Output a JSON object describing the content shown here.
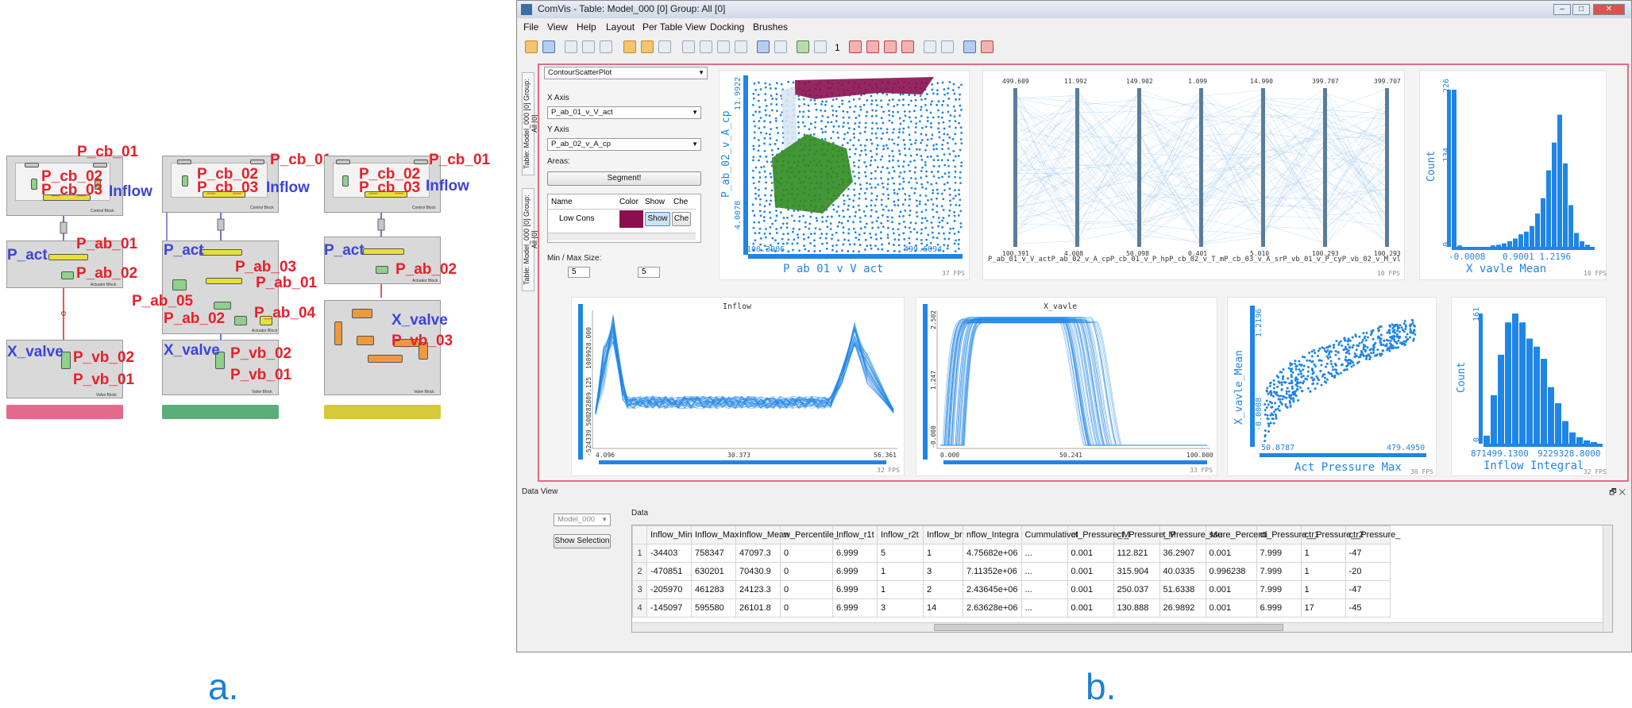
{
  "panel_a": {
    "letter": "a.",
    "column1": {
      "labels": {
        "p_cb_01": "P_cb_01",
        "p_cb_02": "P_cb_02",
        "p_cb_03": "P_cb_03",
        "inflow": "Inflow",
        "p_act": "P_act",
        "p_ab_01": "P_ab_01",
        "p_ab_02": "P_ab_02",
        "x_valve": "X_valve",
        "p_vb_02": "P_vb_02",
        "p_vb_01": "P_vb_01"
      },
      "bar_color": "#e26b8d"
    },
    "column2": {
      "labels": {
        "p_cb_01": "P_cb_01",
        "p_cb_02": "P_cb_02",
        "p_cb_03": "P_cb_03",
        "inflow": "Inflow",
        "p_act": "P_act",
        "p_ab_03": "P_ab_03",
        "p_ab_01": "P_ab_01",
        "p_ab_05": "P_ab_05",
        "p_ab_02": "P_ab_02",
        "p_ab_04": "P_ab_04",
        "x_valve": "X_valve",
        "p_vb_02": "P_vb_02",
        "p_vb_01": "P_vb_01"
      },
      "bar_color": "#5aae7a"
    },
    "column3": {
      "labels": {
        "p_cb_01": "P_cb_01",
        "p_cb_02": "P_cb_02",
        "p_cb_03": "P_cb_03",
        "inflow": "Inflow",
        "p_act": "P_act",
        "p_ab_02": "P_ab_02",
        "x_valve": "X_valve",
        "p_vb_03": "P_vb_03"
      },
      "bar_color": "#d6c93a"
    },
    "block_captions": {
      "control": "Control Block",
      "actuator": "Actuator Block",
      "valve": "Valve Block"
    }
  },
  "panel_b": {
    "letter": "b.",
    "window_title": "ComVis - Table: Model_000 [0] Group: All [0]",
    "window_buttons": [
      "–",
      "□",
      "✕"
    ],
    "menu": [
      "File",
      "View",
      "Help",
      "Layout",
      "Per Table View",
      "Docking",
      "Brushes"
    ],
    "toolbar_number": "1",
    "side_tabs": [
      "Table: Model_000 [0] Group: All [0]",
      "Table: Model_000 [0] Group: All [0]"
    ],
    "controls": {
      "plot_type": "ContourScatterPlot",
      "x_axis_label": "X Axis",
      "x_axis_value": "P_ab_01_v_V_act",
      "y_axis_label": "Y Axis",
      "y_axis_value": "P_ab_02_v_A_cp",
      "areas_label": "Areas:",
      "segment_button": "Segment!",
      "table_headers": [
        "Name",
        "Color",
        "Show",
        "Che"
      ],
      "table_row": {
        "name": "Low Cons",
        "color": "#8a0f4f",
        "show": "Show",
        "che": "Che"
      },
      "minmax_label": "Min / Max Size:",
      "min_size": "5",
      "max_size": "5"
    },
    "scatter1": {
      "ylabel": "P_ab_02_v_A_cp",
      "xlabel": "P ab 01 v V act",
      "y_max": "11.9922",
      "y_min": "4.0078",
      "x_min": "100.3906",
      "x_max": "499.6094",
      "fps": "37 FPS",
      "colors": {
        "points": "#1f85e6",
        "area1": "#8a0f4f",
        "area2": "#2f8a1f",
        "area3": "#d8e6f2"
      }
    },
    "parallel": {
      "axes": [
        {
          "top": "499.609",
          "bottom": "100.391"
        },
        {
          "top": "11.992",
          "bottom": "4.008"
        },
        {
          "top": "149.902",
          "bottom": "50.098"
        },
        {
          "top": "1.099",
          "bottom": "0.401"
        },
        {
          "top": "14.990",
          "bottom": "5.010"
        },
        {
          "top": "399.707",
          "bottom": "100.293"
        },
        {
          "top": "399.707",
          "bottom": "100.293"
        }
      ],
      "axis_names": "P_ab_01_v_V_actP_ab_02_v_A_cpP_cb_01_v_P_hpP_cb_02_v_T_mP_cb_03_v_A_srP_vb_01_v_P_cyP_vb_02_v_M_vl",
      "fps": "10 FPS"
    },
    "hist1": {
      "ylabel": "Count",
      "xlabel": "X vavle Mean",
      "y_top": "226",
      "y_mid": "134",
      "y_zero": "0",
      "x_min": "-0.0008",
      "x_max": "0.9001 1.2196",
      "fps": "10 FPS"
    },
    "curves1": {
      "title": "Inflow",
      "y_top": "1089928.000",
      "y_mid": "282809.125",
      "y_bottom": "-524339.500",
      "x_min": "4.096",
      "x_mid": "30.373",
      "x_max": "56.361",
      "fps": "32 FPS"
    },
    "curves2": {
      "title": "X_vavle",
      "y_top": "2.502",
      "y_mid": "1.247",
      "y_bottom": "-0.008",
      "x_min": "0.000",
      "x_mid": "50.241",
      "x_max": "100.000",
      "fps": "33 FPS"
    },
    "scatter2": {
      "ylabel": "X_vavle_Mean",
      "xlabel": "Act Pressure Max",
      "y_max": "1.2196",
      "y_min": "-0.0008",
      "x_min": "50.8787",
      "x_max": "479.4950",
      "fps": "36 FPS"
    },
    "hist2": {
      "ylabel": "Count",
      "xlabel": "Inflow Integral",
      "y_top": "161",
      "y_zero": "0",
      "x_min": "871499.1300",
      "x_max": "9229328.8000",
      "fps": "32 FPS"
    },
    "data_view": {
      "title": "Data View",
      "close_icons": "🗗 ✕",
      "model_select": "Model_000",
      "show_selection": "Show Selection",
      "data_label": "Data",
      "columns": [
        "Inflow_Min",
        "Inflow_Max",
        "Inflow_Mean",
        "w_Percentile_",
        "Inflow_r1t",
        "Inflow_r2t",
        "Inflow_br",
        "nflow_Integra",
        "CummulativeI",
        "ct_Pressure_M",
        "ct_Pressure_M",
        "t_Pressure_Me",
        "ssure_Percenti",
        "ct_Pressure_r1",
        "ct_Pressure_r2",
        "ct_Pressure_"
      ],
      "rows": [
        [
          "1",
          "-34403",
          "758347",
          "47097.3",
          "0",
          "6.999",
          "5",
          "1",
          "4.75682e+06",
          "...",
          "0.001",
          "112.821",
          "36.2907",
          "0.001",
          "7.999",
          "1",
          "-47"
        ],
        [
          "2",
          "-470851",
          "630201",
          "70430.9",
          "0",
          "6.999",
          "1",
          "3",
          "7.11352e+06",
          "...",
          "0.001",
          "315.904",
          "40.0335",
          "0.996238",
          "7.999",
          "1",
          "-20"
        ],
        [
          "3",
          "-205970",
          "461283",
          "24123.3",
          "0",
          "6.999",
          "1",
          "2",
          "2.43645e+06",
          "...",
          "0.001",
          "250.037",
          "51.6338",
          "0.001",
          "7.999",
          "1",
          "-47"
        ],
        [
          "4",
          "-145097",
          "595580",
          "26101.8",
          "0",
          "6.999",
          "3",
          "14",
          "2.63628e+06",
          "...",
          "0.001",
          "130.888",
          "26.9892",
          "0.001",
          "6.999",
          "17",
          "-45"
        ]
      ]
    }
  }
}
